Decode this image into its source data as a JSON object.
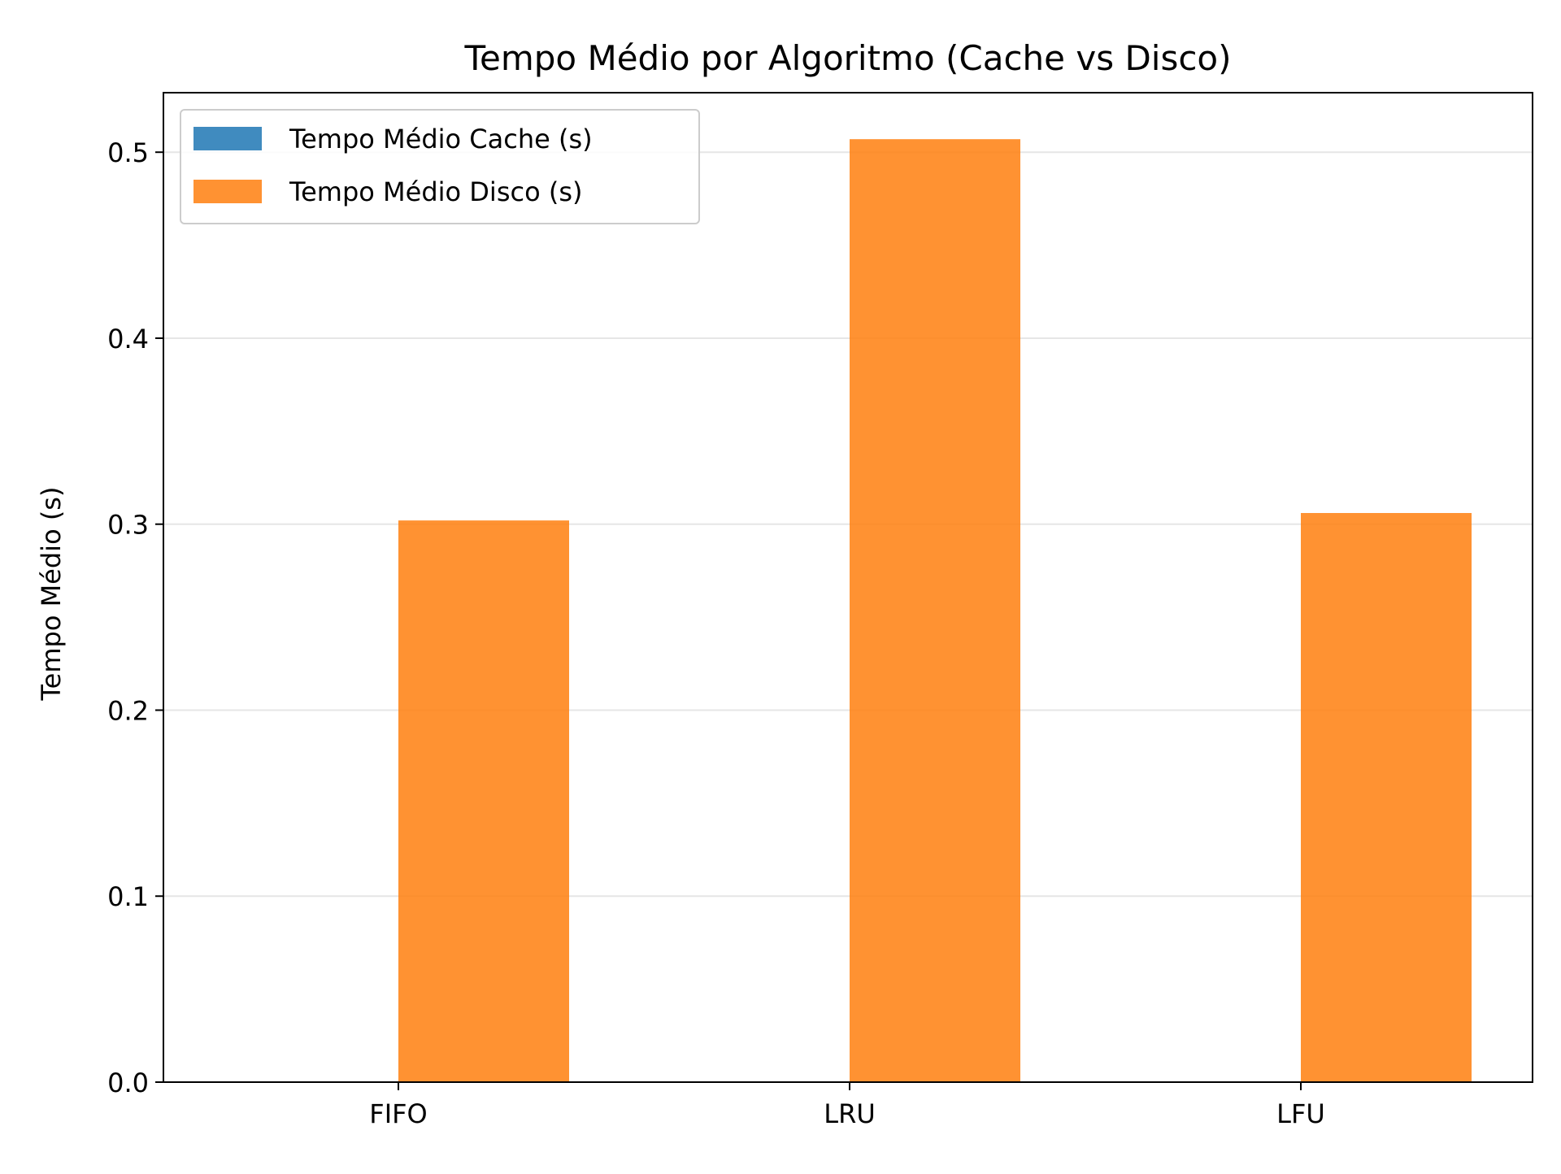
{
  "chart_data": {
    "type": "bar",
    "title": "Tempo Médio por Algoritmo (Cache vs Disco)",
    "xlabel": "",
    "ylabel": "Tempo Médio (s)",
    "categories": [
      "FIFO",
      "LRU",
      "LFU"
    ],
    "series": [
      {
        "name": "Tempo Médio Cache (s)",
        "values": [
          0.0,
          0.0,
          0.0
        ],
        "color": "#1f77b4"
      },
      {
        "name": "Tempo Médio Disco (s)",
        "values": [
          0.302,
          0.507,
          0.306
        ],
        "color": "#ff7f0e"
      }
    ],
    "ylim": [
      0,
      0.532
    ],
    "yticks": [
      0.0,
      0.1,
      0.2,
      0.3,
      0.4,
      0.5
    ],
    "ytick_labels": [
      "0.0",
      "0.1",
      "0.2",
      "0.3",
      "0.4",
      "0.5"
    ],
    "grid": "y",
    "legend_position": "top-left",
    "colors": {
      "grid": "#e6e6e6",
      "axis": "#000000",
      "legend_border": "#cccccc"
    }
  }
}
